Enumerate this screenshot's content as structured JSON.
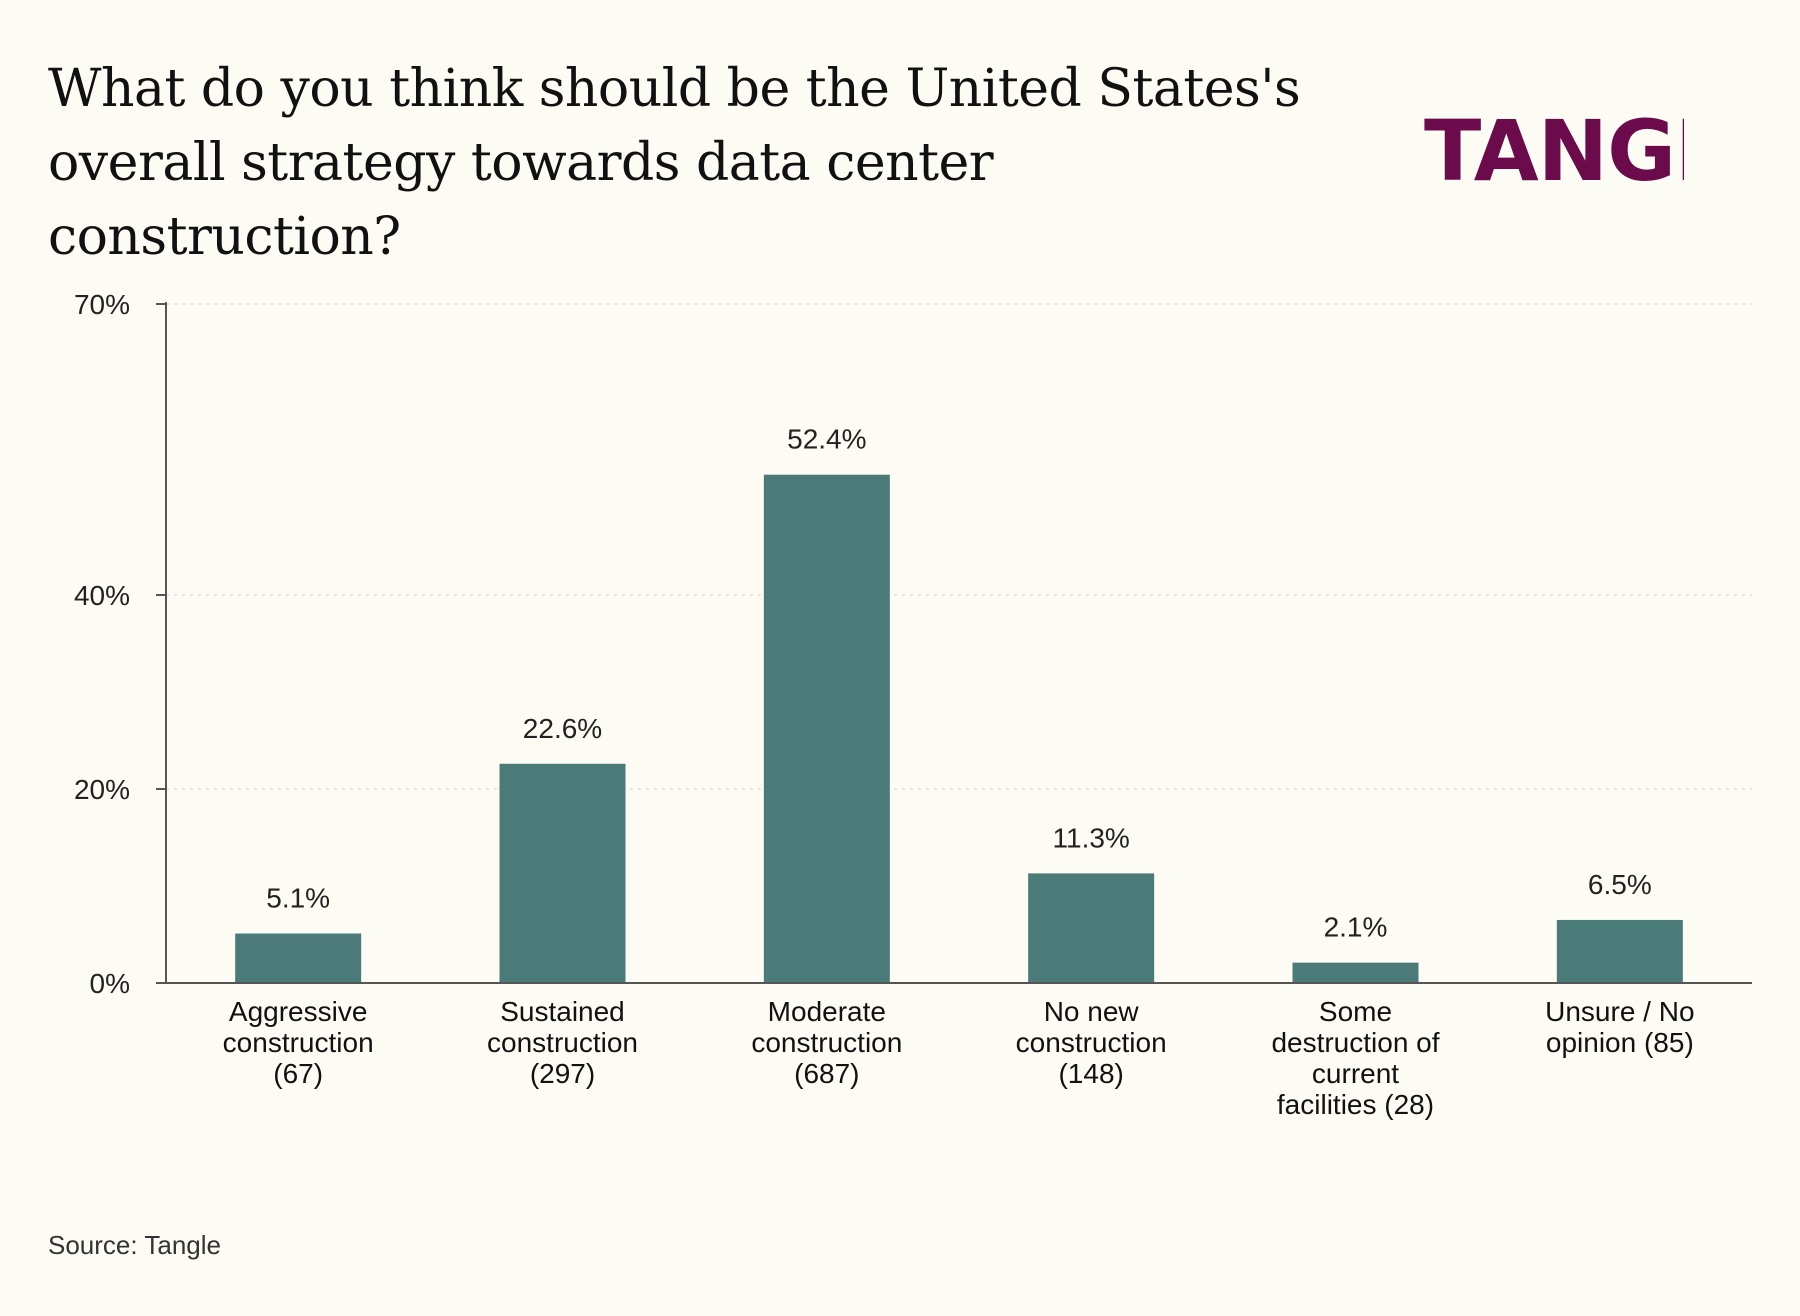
{
  "header": {
    "title_line1": "What do you think should be the United States's",
    "title_line2": "overall strategy towards data center construction?",
    "brand": "TANGLE"
  },
  "footer": {
    "source": "Source: Tangle"
  },
  "colors": {
    "background": "#fcfbf4",
    "bar": "#4a7b78",
    "brand": "#6c0b4c"
  },
  "chart_data": {
    "type": "bar",
    "title": "What do you think should be the United States's overall strategy towards data center construction?",
    "xlabel": "",
    "ylabel": "",
    "ylim": [
      0,
      70
    ],
    "yticks": [
      0,
      20,
      40,
      70
    ],
    "ytick_labels": [
      "0%",
      "20%",
      "40%",
      "70%"
    ],
    "grid": true,
    "categories": [
      [
        "Aggressive",
        "construction",
        "(67)"
      ],
      [
        "Sustained",
        "construction",
        "(297)"
      ],
      [
        "Moderate",
        "construction",
        "(687)"
      ],
      [
        "No new",
        "construction",
        "(148)"
      ],
      [
        "Some",
        "destruction of",
        "current",
        "facilities (28)"
      ],
      [
        "Unsure / No",
        "opinion (85)"
      ]
    ],
    "values": [
      5.1,
      22.6,
      52.4,
      11.3,
      2.1,
      6.5
    ],
    "value_labels": [
      "5.1%",
      "22.6%",
      "52.4%",
      "11.3%",
      "2.1%",
      "6.5%"
    ]
  }
}
